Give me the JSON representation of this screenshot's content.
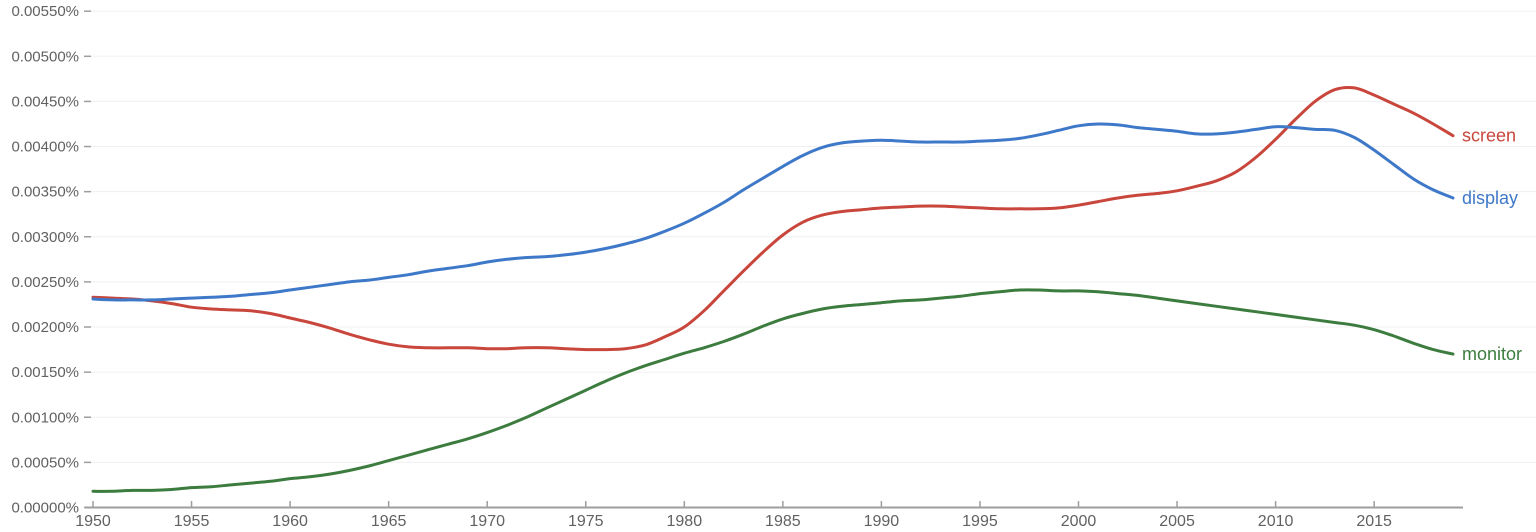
{
  "chart_data": {
    "type": "line",
    "title": "",
    "xlabel": "",
    "ylabel": "",
    "xlim": [
      1950,
      2019.5
    ],
    "ylim": [
      0,
      0.0055
    ],
    "grid": "horizontal",
    "legend_position": "inline-right",
    "x": [
      1950,
      1951,
      1952,
      1953,
      1954,
      1955,
      1956,
      1957,
      1958,
      1959,
      1960,
      1961,
      1962,
      1963,
      1964,
      1965,
      1966,
      1967,
      1968,
      1969,
      1970,
      1971,
      1972,
      1973,
      1974,
      1975,
      1976,
      1977,
      1978,
      1979,
      1980,
      1981,
      1982,
      1983,
      1984,
      1985,
      1986,
      1987,
      1988,
      1989,
      1990,
      1991,
      1992,
      1993,
      1994,
      1995,
      1996,
      1997,
      1998,
      1999,
      2000,
      2001,
      2002,
      2003,
      2004,
      2005,
      2006,
      2007,
      2008,
      2009,
      2010,
      2011,
      2012,
      2013,
      2014,
      2015,
      2016,
      2017,
      2018,
      2019
    ],
    "x_tick_labels": [
      "1950",
      "1955",
      "1960",
      "1965",
      "1970",
      "1975",
      "1980",
      "1985",
      "1990",
      "1995",
      "2000",
      "2005",
      "2010",
      "2015"
    ],
    "x_tick_values": [
      1950,
      1955,
      1960,
      1965,
      1970,
      1975,
      1980,
      1985,
      1990,
      1995,
      2000,
      2005,
      2010,
      2015
    ],
    "y_tick_labels": [
      "0.00000%",
      "0.00050%",
      "0.00100%",
      "0.00150%",
      "0.00200%",
      "0.00250%",
      "0.00300%",
      "0.00350%",
      "0.00400%",
      "0.00450%",
      "0.00500%",
      "0.00550%"
    ],
    "y_tick_values": [
      0,
      0.0005,
      0.001,
      0.0015,
      0.002,
      0.0025,
      0.003,
      0.0035,
      0.004,
      0.0045,
      0.005,
      0.0055
    ],
    "series": [
      {
        "name": "screen",
        "label": "screen",
        "color": "#c9463c",
        "values": [
          0.00233,
          0.00232,
          0.00231,
          0.00229,
          0.00226,
          0.00222,
          0.0022,
          0.00219,
          0.00218,
          0.00215,
          0.0021,
          0.00205,
          0.00199,
          0.00192,
          0.00186,
          0.00181,
          0.00178,
          0.00177,
          0.00177,
          0.00177,
          0.00176,
          0.00176,
          0.00177,
          0.00177,
          0.00176,
          0.00175,
          0.00175,
          0.00176,
          0.0018,
          0.00189,
          0.002,
          0.00218,
          0.0024,
          0.00262,
          0.00283,
          0.00302,
          0.00316,
          0.00324,
          0.00328,
          0.0033,
          0.00332,
          0.00333,
          0.00334,
          0.00334,
          0.00333,
          0.00332,
          0.00331,
          0.00331,
          0.00331,
          0.00332,
          0.00335,
          0.00339,
          0.00343,
          0.00346,
          0.00348,
          0.00351,
          0.00356,
          0.00362,
          0.00372,
          0.00388,
          0.00408,
          0.0043,
          0.0045,
          0.00463,
          0.00465,
          0.00457,
          0.00447,
          0.00437,
          0.00425,
          0.00412
        ]
      },
      {
        "name": "display",
        "label": "display",
        "color": "#3e78c8",
        "values": [
          0.00231,
          0.0023,
          0.0023,
          0.0023,
          0.00231,
          0.00232,
          0.00233,
          0.00234,
          0.00236,
          0.00238,
          0.00241,
          0.00244,
          0.00247,
          0.0025,
          0.00252,
          0.00255,
          0.00258,
          0.00262,
          0.00265,
          0.00268,
          0.00272,
          0.00275,
          0.00277,
          0.00278,
          0.0028,
          0.00283,
          0.00287,
          0.00292,
          0.00298,
          0.00306,
          0.00315,
          0.00326,
          0.00338,
          0.00352,
          0.00365,
          0.00378,
          0.0039,
          0.00399,
          0.00404,
          0.00406,
          0.00407,
          0.00406,
          0.00405,
          0.00405,
          0.00405,
          0.00406,
          0.00407,
          0.00409,
          0.00413,
          0.00418,
          0.00423,
          0.00425,
          0.00424,
          0.00421,
          0.00419,
          0.00417,
          0.00414,
          0.00414,
          0.00416,
          0.00419,
          0.00422,
          0.00421,
          0.00419,
          0.00418,
          0.0041,
          0.00396,
          0.0038,
          0.00364,
          0.00352,
          0.00343
        ]
      },
      {
        "name": "monitor",
        "label": "monitor",
        "color": "#3d7c3f",
        "values": [
          0.00018,
          0.00018,
          0.00019,
          0.00019,
          0.0002,
          0.00022,
          0.00023,
          0.00025,
          0.00027,
          0.00029,
          0.00032,
          0.00034,
          0.00037,
          0.00041,
          0.00046,
          0.00052,
          0.00058,
          0.00064,
          0.0007,
          0.00076,
          0.00083,
          0.00091,
          0.001,
          0.0011,
          0.0012,
          0.0013,
          0.0014,
          0.00149,
          0.00157,
          0.00164,
          0.00171,
          0.00177,
          0.00184,
          0.00192,
          0.00201,
          0.00209,
          0.00215,
          0.0022,
          0.00223,
          0.00225,
          0.00227,
          0.00229,
          0.0023,
          0.00232,
          0.00234,
          0.00237,
          0.00239,
          0.00241,
          0.00241,
          0.0024,
          0.0024,
          0.00239,
          0.00237,
          0.00235,
          0.00232,
          0.00229,
          0.00226,
          0.00223,
          0.0022,
          0.00217,
          0.00214,
          0.00211,
          0.00208,
          0.00205,
          0.00202,
          0.00197,
          0.0019,
          0.00182,
          0.00175,
          0.0017
        ]
      }
    ],
    "colors": {
      "axis": "#9e9e9e",
      "gridline": "#f0f0f0",
      "tick_text": "#616161"
    }
  }
}
